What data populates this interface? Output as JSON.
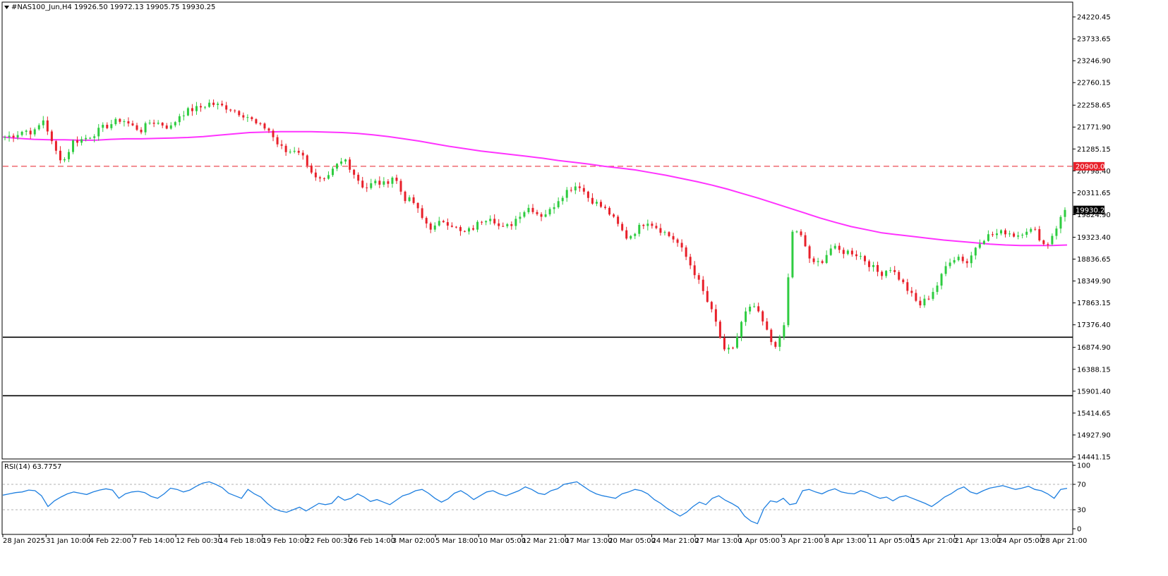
{
  "header": {
    "symbol_line": "#NAS100_Jun,H4  19926.50 19972.13 19905.75 19930.25",
    "triangle_icon": "triangle-down-icon"
  },
  "indicator": {
    "label": "RSI(14) 63.7757"
  },
  "price_tags": {
    "level": "20900.00",
    "current": "19930.25"
  },
  "colors": {
    "bull": "#2ecc40",
    "bear": "#e8202a",
    "ma": "#ff33ff",
    "rsi": "#1e7fe0",
    "level_tag": "#e8202a",
    "current_tag": "#000000"
  },
  "chart_data": [
    {
      "type": "candlestick",
      "ylim": [
        14441.15,
        24400
      ],
      "y_ticks": [
        "24220.45",
        "23733.65",
        "23246.90",
        "22760.15",
        "22258.65",
        "21771.90",
        "21285.15",
        "20798.40",
        "20311.65",
        "19824.90",
        "19323.40",
        "18836.65",
        "18349.90",
        "17863.15",
        "17376.40",
        "16874.90",
        "16388.15",
        "15901.40",
        "15414.65",
        "14927.90",
        "14441.15"
      ],
      "x_ticks": [
        "28 Jan 2025",
        "31 Jan 10:00",
        "4 Feb 22:00",
        "7 Feb 14:00",
        "12 Feb 00:30",
        "14 Feb 18:00",
        "19 Feb 10:00",
        "22 Feb 00:30",
        "26 Feb 14:00",
        "3 Mar 02:00",
        "5 Mar 18:00",
        "10 Mar 05:00",
        "12 Mar 21:00",
        "17 Mar 13:00",
        "20 Mar 05:00",
        "24 Mar 21:00",
        "27 Mar 13:00",
        "1 Apr 05:00",
        "3 Apr 21:00",
        "8 Apr 13:00",
        "11 Apr 05:00",
        "15 Apr 21:00",
        "21 Apr 13:00",
        "24 Apr 05:00",
        "28 Apr 21:00"
      ],
      "close_path": [
        21550,
        21600,
        21700,
        21650,
        21950,
        21300,
        21000,
        21450,
        21500,
        21600,
        21750,
        21850,
        21950,
        21800,
        21700,
        21900,
        21850,
        21750,
        22050,
        22150,
        22200,
        22300,
        22250,
        22200,
        22100,
        22000,
        21800,
        21750,
        21400,
        21200,
        21300,
        21000,
        20600,
        20550,
        20900,
        21050,
        20700,
        20400,
        20550,
        20500,
        20700,
        20200,
        20100,
        19700,
        19500,
        19700,
        19600,
        19400,
        19500,
        19700,
        19800,
        19500,
        19600,
        19850,
        20000,
        19800,
        19900,
        20200,
        20400,
        20500,
        20200,
        20050,
        19900,
        19600,
        19300,
        19500,
        19700,
        19550,
        19400,
        19250,
        18900,
        18500,
        18000,
        17500,
        16750,
        16900,
        17600,
        17800,
        17400,
        16900,
        17100,
        19500,
        19300,
        18700,
        18800,
        19100,
        19000,
        19000,
        18900,
        18700,
        18500,
        18650,
        18400,
        18100,
        17800,
        18000,
        18300,
        18800,
        18900,
        18750,
        19200,
        19350,
        19400,
        19450,
        19350,
        19500,
        19450,
        19100,
        19500,
        19930.25
      ],
      "ma_path": [
        21550,
        21520,
        21500,
        21490,
        21490,
        21480,
        21480,
        21500,
        21510,
        21510,
        21520,
        21530,
        21540,
        21560,
        21590,
        21620,
        21650,
        21660,
        21670,
        21670,
        21670,
        21660,
        21650,
        21630,
        21600,
        21560,
        21510,
        21460,
        21400,
        21340,
        21290,
        21240,
        21200,
        21160,
        21120,
        21080,
        21030,
        20990,
        20950,
        20900,
        20860,
        20820,
        20760,
        20700,
        20630,
        20560,
        20480,
        20390,
        20290,
        20190,
        20080,
        19970,
        19860,
        19750,
        19650,
        19560,
        19490,
        19420,
        19380,
        19340,
        19300,
        19260,
        19230,
        19200,
        19170,
        19150,
        19140,
        19140,
        19140,
        19150
      ],
      "levels": [
        {
          "value": 20900.0,
          "style": "dashed",
          "color": "#e8202a"
        },
        {
          "value": 17100,
          "style": "solid",
          "color": "#000000"
        },
        {
          "value": 15800,
          "style": "solid",
          "color": "#000000"
        }
      ]
    },
    {
      "type": "line",
      "series": [
        {
          "values": [
            53,
            55,
            57,
            58,
            61,
            60,
            52,
            35,
            44,
            50,
            55,
            58,
            56,
            54,
            58,
            61,
            63,
            61,
            48,
            55,
            58,
            59,
            57,
            51,
            48,
            55,
            64,
            62,
            58,
            61,
            67,
            72,
            74,
            70,
            65,
            56,
            52,
            48,
            62,
            55,
            50,
            40,
            32,
            28,
            26,
            30,
            34,
            28,
            34,
            40,
            38,
            40,
            51,
            45,
            48,
            55,
            50,
            43,
            46,
            42,
            38,
            45,
            52,
            55,
            60,
            62,
            56,
            48,
            42,
            47,
            56,
            60,
            54,
            46,
            52,
            58,
            60,
            55,
            52,
            56,
            60,
            66,
            62,
            56,
            54,
            60,
            63,
            70,
            72,
            74,
            67,
            60,
            55,
            52,
            50,
            48,
            55,
            58,
            62,
            60,
            55,
            46,
            40,
            32,
            26,
            20,
            26,
            35,
            42,
            38,
            48,
            52,
            45,
            40,
            34,
            20,
            12,
            8,
            32,
            44,
            42,
            48,
            38,
            40,
            60,
            62,
            58,
            55,
            60,
            63,
            58,
            56,
            55,
            60,
            57,
            52,
            48,
            50,
            44,
            50,
            52,
            48,
            44,
            40,
            35,
            42,
            50,
            55,
            62,
            66,
            58,
            55,
            60,
            64,
            66,
            68,
            65,
            62,
            64,
            67,
            62,
            60,
            55,
            48,
            62,
            63.78
          ]
        }
      ],
      "ylim": [
        0,
        100
      ],
      "y_ticks": [
        "100",
        "70",
        "30",
        "0"
      ],
      "levels": [
        70,
        30
      ]
    }
  ]
}
